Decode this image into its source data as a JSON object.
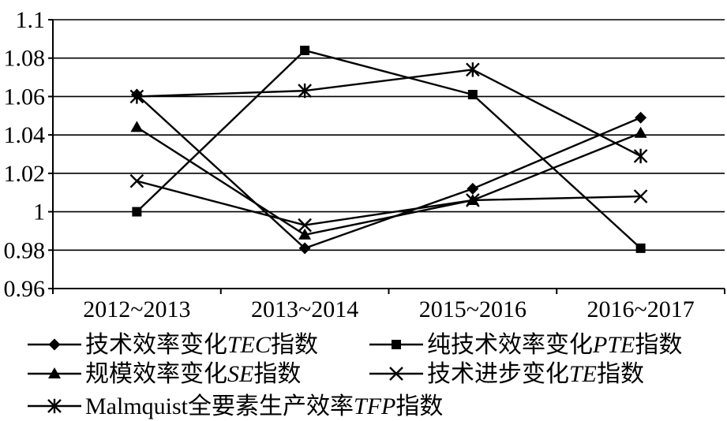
{
  "chart_data": {
    "type": "line",
    "title": "",
    "xlabel": "",
    "ylabel": "",
    "categories": [
      "2012~2013",
      "2013~2014",
      "2015~2016",
      "2016~2017"
    ],
    "ylim": [
      0.96,
      1.1
    ],
    "yticks": [
      0.96,
      0.98,
      1.0,
      1.02,
      1.04,
      1.06,
      1.08,
      1.1
    ],
    "ytick_labels": [
      "0.96",
      "0.98",
      "1",
      "1.02",
      "1.04",
      "1.06",
      "1.08",
      "1.1"
    ],
    "grid": "horizontal",
    "legend_position": "bottom",
    "series": [
      {
        "name_parts": [
          {
            "text": "技术效率变化",
            "italic": false
          },
          {
            "text": "TEC",
            "italic": true
          },
          {
            "text": "指数",
            "italic": false
          }
        ],
        "marker": "diamond",
        "values": [
          1.061,
          0.981,
          1.012,
          1.049
        ]
      },
      {
        "name_parts": [
          {
            "text": "纯技术效率变化",
            "italic": false
          },
          {
            "text": "PTE",
            "italic": true
          },
          {
            "text": "指数",
            "italic": false
          }
        ],
        "marker": "square",
        "values": [
          1.0,
          1.084,
          1.061,
          0.981
        ]
      },
      {
        "name_parts": [
          {
            "text": "规模效率变化",
            "italic": false
          },
          {
            "text": "SE",
            "italic": true
          },
          {
            "text": "指数",
            "italic": false
          }
        ],
        "marker": "triangle",
        "values": [
          1.044,
          0.988,
          1.006,
          1.041
        ]
      },
      {
        "name_parts": [
          {
            "text": "技术进步变化",
            "italic": false
          },
          {
            "text": "TE",
            "italic": true
          },
          {
            "text": "指数",
            "italic": false
          }
        ],
        "marker": "x",
        "values": [
          1.016,
          0.993,
          1.006,
          1.008
        ]
      },
      {
        "name_parts": [
          {
            "text": "Malmquist全要素生产效率",
            "italic": false
          },
          {
            "text": "TFP",
            "italic": true
          },
          {
            "text": "指数",
            "italic": false
          }
        ],
        "marker": "star",
        "values": [
          1.06,
          1.063,
          1.074,
          1.029
        ]
      }
    ]
  }
}
